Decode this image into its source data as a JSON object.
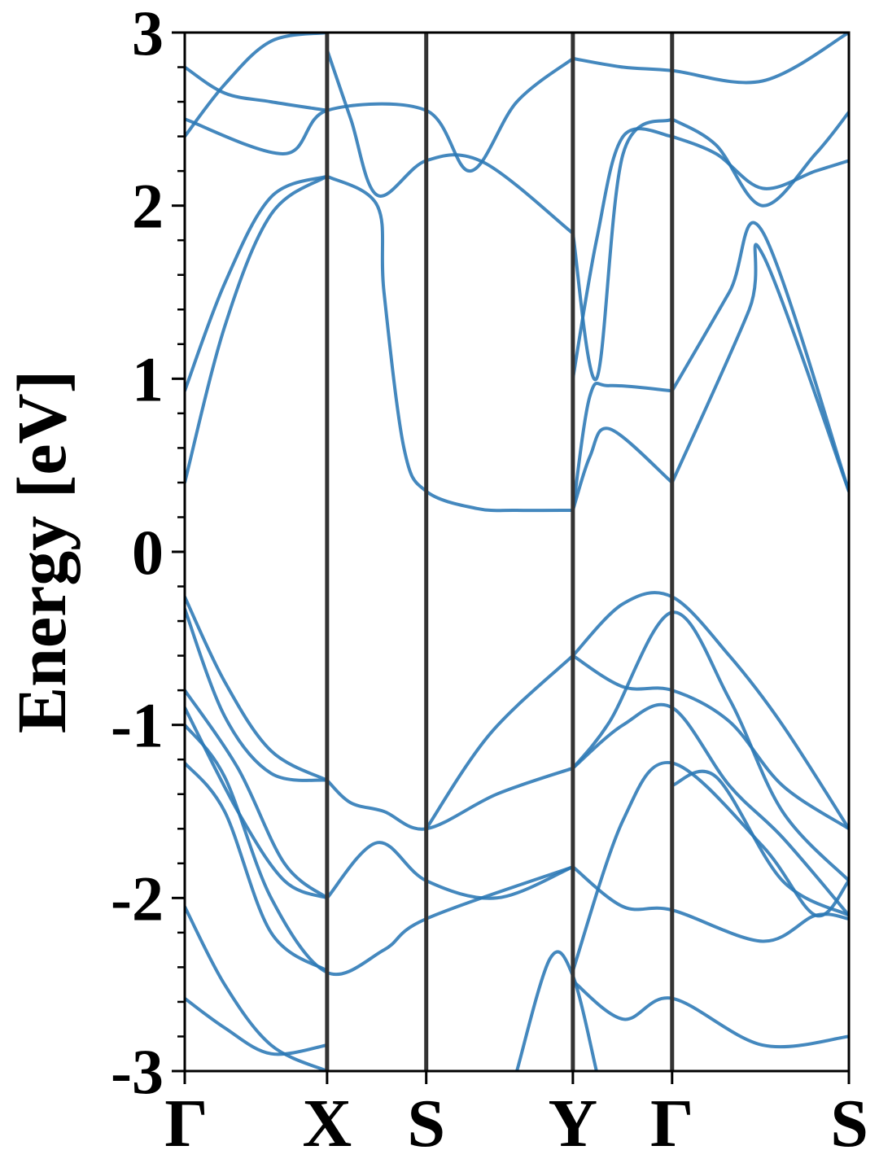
{
  "chart_data": {
    "type": "line",
    "title": "",
    "xlabel": "",
    "ylabel": "Energy [eV]",
    "ylim": [
      -3,
      3
    ],
    "y_ticks": [
      "3",
      "2",
      "1",
      "0",
      "-1",
      "-2",
      "-3"
    ],
    "y_tick_values": [
      3,
      2,
      1,
      0,
      -1,
      -2,
      -3
    ],
    "k_points": [
      {
        "label": "Γ",
        "k": 0.0
      },
      {
        "label": "X",
        "k": 0.2143
      },
      {
        "label": "S",
        "k": 0.3636
      },
      {
        "label": "Y",
        "k": 0.5844
      },
      {
        "label": "Γ",
        "k": 0.7338
      },
      {
        "label": "S",
        "k": 1.0
      }
    ],
    "grid": false,
    "legend": "none",
    "colors": {
      "band": "#2a78b5",
      "kline": "#333333",
      "axis": "#000000"
    },
    "series": [
      {
        "x": [
          0,
          0.06,
          0.13,
          0.2143
        ],
        "values": [
          0.4,
          1.3,
          1.95,
          2.17
        ]
      },
      {
        "x": [
          0,
          0.06,
          0.13,
          0.2143
        ],
        "values": [
          0.93,
          1.55,
          2.05,
          2.17
        ]
      },
      {
        "x": [
          0.2143,
          0.29,
          0.3,
          0.33,
          0.3636,
          0.44,
          0.5,
          0.5844
        ],
        "values": [
          2.17,
          2.0,
          1.5,
          0.6,
          0.35,
          0.25,
          0.24,
          0.24
        ]
      },
      {
        "x": [
          0.5844,
          0.61,
          0.64,
          0.7338
        ],
        "values": [
          0.24,
          0.9,
          0.96,
          0.93
        ]
      },
      {
        "x": [
          0.5844,
          0.61,
          0.64,
          0.7338
        ],
        "values": [
          0.24,
          0.55,
          0.71,
          0.4
        ]
      },
      {
        "x": [
          0.7338,
          0.85,
          0.87,
          1.0
        ],
        "values": [
          0.4,
          1.4,
          1.72,
          0.35
        ]
      },
      {
        "x": [
          0.7338,
          0.82,
          0.87,
          1.0
        ],
        "values": [
          0.93,
          1.5,
          1.85,
          0.35
        ]
      },
      {
        "x": [
          0.2143,
          0.25,
          0.29,
          0.3636,
          0.45,
          0.5844
        ],
        "values": [
          2.9,
          2.5,
          2.06,
          2.26,
          2.25,
          1.84
        ]
      },
      {
        "x": [
          0.5844,
          0.62,
          0.66,
          0.7338
        ],
        "values": [
          1.84,
          1.0,
          2.3,
          2.5
        ]
      },
      {
        "x": [
          0.5844,
          0.62,
          0.66,
          0.7338
        ],
        "values": [
          1.0,
          1.8,
          2.4,
          2.4
        ]
      },
      {
        "x": [
          0.7338,
          0.8,
          0.87,
          0.95,
          1.0
        ],
        "values": [
          2.5,
          2.35,
          2.0,
          2.3,
          2.54
        ]
      },
      {
        "x": [
          0.7338,
          0.8,
          0.87,
          0.95,
          1.0
        ],
        "values": [
          2.4,
          2.3,
          2.1,
          2.2,
          2.26
        ]
      },
      {
        "x": [
          0,
          0.15,
          0.2143,
          0.3636,
          0.43,
          0.5,
          0.5844
        ],
        "values": [
          2.5,
          2.3,
          2.55,
          2.55,
          2.2,
          2.6,
          2.85
        ]
      },
      {
        "x": [
          0,
          0.06,
          0.13,
          0.2143
        ],
        "values": [
          2.4,
          2.7,
          2.95,
          3.0
        ]
      },
      {
        "x": [
          0.5844,
          0.66,
          0.7338,
          0.87,
          1.0
        ],
        "values": [
          2.85,
          2.8,
          2.78,
          2.72,
          3.0
        ]
      },
      {
        "x": [
          0,
          0.06,
          0.13,
          0.2143
        ],
        "values": [
          2.8,
          2.65,
          2.6,
          2.55
        ]
      },
      {
        "x": [
          0,
          0.06,
          0.13,
          0.2143
        ],
        "values": [
          -0.26,
          -0.75,
          -1.15,
          -1.32
        ]
      },
      {
        "x": [
          0,
          0.06,
          0.13,
          0.2143
        ],
        "values": [
          -0.33,
          -0.95,
          -1.28,
          -1.32
        ]
      },
      {
        "x": [
          0.2143,
          0.25,
          0.3,
          0.3636,
          0.47,
          0.5844
        ],
        "values": [
          -1.32,
          -1.45,
          -1.5,
          -1.6,
          -1.4,
          -1.25
        ]
      },
      {
        "x": [
          0.5844,
          0.66,
          0.7338,
          0.82,
          0.9,
          1.0
        ],
        "values": [
          -0.6,
          -0.78,
          -0.8,
          -0.98,
          -1.35,
          -1.6
        ]
      },
      {
        "x": [
          0.3636,
          0.46,
          0.5844
        ],
        "values": [
          -1.6,
          -1.05,
          -0.6
        ]
      },
      {
        "x": [
          0.5844,
          0.66,
          0.7338,
          0.82,
          0.9,
          1.0
        ],
        "values": [
          -0.6,
          -0.3,
          -0.26,
          -0.6,
          -1.0,
          -1.6
        ]
      },
      {
        "x": [
          0.5844,
          0.64,
          0.7338,
          0.82,
          0.9,
          1.0
        ],
        "values": [
          -1.25,
          -0.98,
          -0.35,
          -0.85,
          -1.5,
          -1.9
        ]
      },
      {
        "x": [
          0.5844,
          0.66,
          0.7338,
          0.82,
          0.9,
          1.0
        ],
        "values": [
          -1.25,
          -1.0,
          -0.9,
          -1.35,
          -1.65,
          -2.1
        ]
      },
      {
        "x": [
          0,
          0.08,
          0.15,
          0.2143
        ],
        "values": [
          -0.8,
          -1.25,
          -1.8,
          -2.0
        ]
      },
      {
        "x": [
          0,
          0.08,
          0.15,
          0.2143
        ],
        "values": [
          -0.9,
          -1.5,
          -1.9,
          -2.0
        ]
      },
      {
        "x": [
          0.2143,
          0.29,
          0.3636,
          0.47,
          0.5844
        ],
        "values": [
          -2.0,
          -1.68,
          -1.9,
          -2.0,
          -1.82
        ]
      },
      {
        "x": [
          0,
          0.06,
          0.13,
          0.2143,
          0.3,
          0.3636,
          0.5844
        ],
        "values": [
          -1.0,
          -1.3,
          -2.0,
          -2.43,
          -2.3,
          -2.12,
          -1.82
        ]
      },
      {
        "x": [
          0,
          0.06,
          0.13,
          0.2143
        ],
        "values": [
          -1.22,
          -1.5,
          -2.2,
          -2.42
        ]
      },
      {
        "x": [
          0.5844,
          0.66,
          0.7338,
          0.87,
          0.95,
          1.0
        ],
        "values": [
          -1.82,
          -2.05,
          -2.07,
          -2.25,
          -2.1,
          -2.12
        ]
      },
      {
        "x": [
          0.5844,
          0.66,
          0.7338,
          0.87,
          0.95,
          1.0
        ],
        "values": [
          -2.42,
          -1.55,
          -1.22,
          -1.7,
          -2.1,
          -1.9
        ]
      },
      {
        "x": [
          0.7338,
          0.8,
          0.9,
          1.0
        ],
        "values": [
          -1.35,
          -1.3,
          -1.9,
          -2.1
        ]
      },
      {
        "x": [
          0,
          0.06,
          0.13,
          0.2143
        ],
        "values": [
          -2.05,
          -2.5,
          -2.85,
          -3.0
        ]
      },
      {
        "x": [
          0,
          0.06,
          0.13,
          0.2143
        ],
        "values": [
          -2.58,
          -2.75,
          -2.9,
          -2.85
        ]
      },
      {
        "x": [
          0.5844,
          0.66,
          0.7338,
          0.87,
          1.0
        ],
        "values": [
          -2.48,
          -2.7,
          -2.58,
          -2.85,
          -2.8
        ]
      },
      {
        "x": [
          0.5,
          0.55,
          0.5844,
          0.62
        ],
        "values": [
          -3.0,
          -2.35,
          -2.45,
          -3.0
        ]
      }
    ]
  }
}
